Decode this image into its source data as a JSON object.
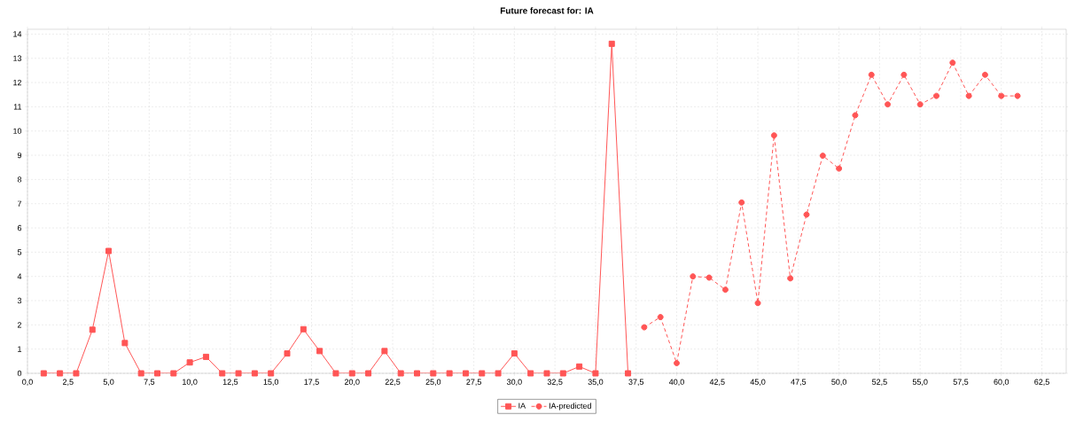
{
  "chart_data": {
    "type": "line",
    "title": "Future forecast for: IA",
    "xlim": [
      0,
      64
    ],
    "ylim": [
      0,
      14.2
    ],
    "xticks": [
      {
        "value": 0,
        "label": "0,0"
      },
      {
        "value": 2.5,
        "label": "2,5"
      },
      {
        "value": 5,
        "label": "5,0"
      },
      {
        "value": 7.5,
        "label": "7,5"
      },
      {
        "value": 10,
        "label": "10,0"
      },
      {
        "value": 12.5,
        "label": "12,5"
      },
      {
        "value": 15,
        "label": "15,0"
      },
      {
        "value": 17.5,
        "label": "17,5"
      },
      {
        "value": 20,
        "label": "20,0"
      },
      {
        "value": 22.5,
        "label": "22,5"
      },
      {
        "value": 25,
        "label": "25,0"
      },
      {
        "value": 27.5,
        "label": "27,5"
      },
      {
        "value": 30,
        "label": "30,0"
      },
      {
        "value": 32.5,
        "label": "32,5"
      },
      {
        "value": 35,
        "label": "35,0"
      },
      {
        "value": 37.5,
        "label": "37,5"
      },
      {
        "value": 40,
        "label": "40,0"
      },
      {
        "value": 42.5,
        "label": "42,5"
      },
      {
        "value": 45,
        "label": "45,0"
      },
      {
        "value": 47.5,
        "label": "47,5"
      },
      {
        "value": 50,
        "label": "50,0"
      },
      {
        "value": 52.5,
        "label": "52,5"
      },
      {
        "value": 55,
        "label": "55,0"
      },
      {
        "value": 57.5,
        "label": "57,5"
      },
      {
        "value": 60,
        "label": "60,0"
      },
      {
        "value": 62.5,
        "label": "62,5"
      }
    ],
    "yticks": [
      0,
      1,
      2,
      3,
      4,
      5,
      6,
      7,
      8,
      9,
      10,
      11,
      12,
      13,
      14
    ],
    "grid": true,
    "legend": "bottom",
    "series": [
      {
        "name": "IA",
        "color": "#ff5555",
        "marker": "square",
        "line_style": "solid",
        "x": [
          1,
          2,
          3,
          4,
          5,
          6,
          7,
          8,
          9,
          10,
          11,
          12,
          13,
          14,
          15,
          16,
          17,
          18,
          19,
          20,
          21,
          22,
          23,
          24,
          25,
          26,
          27,
          28,
          29,
          30,
          31,
          32,
          33,
          34,
          35,
          36,
          37
        ],
        "values": [
          0,
          0,
          0,
          1.8,
          5.05,
          1.25,
          0,
          0,
          0,
          0.45,
          0.68,
          0,
          0,
          0,
          0,
          0.82,
          1.82,
          0.92,
          0,
          0,
          0,
          0.92,
          0,
          0,
          0,
          0,
          0,
          0,
          0,
          0.82,
          0,
          0,
          0,
          0.28,
          0,
          13.6,
          0
        ]
      },
      {
        "name": "IA-predicted",
        "color": "#ff5555",
        "marker": "circle",
        "line_style": "dashed",
        "x": [
          38,
          39,
          40,
          41,
          42,
          43,
          44,
          45,
          46,
          47,
          48,
          49,
          50,
          51,
          52,
          53,
          54,
          55,
          56,
          57,
          58,
          59,
          60,
          61
        ],
        "values": [
          1.9,
          2.32,
          0.42,
          4.0,
          3.95,
          3.45,
          7.05,
          2.9,
          9.82,
          3.92,
          6.55,
          8.98,
          8.45,
          10.65,
          12.32,
          11.1,
          12.32,
          11.1,
          11.45,
          12.82,
          11.45,
          12.32,
          11.45,
          11.45
        ]
      }
    ]
  }
}
